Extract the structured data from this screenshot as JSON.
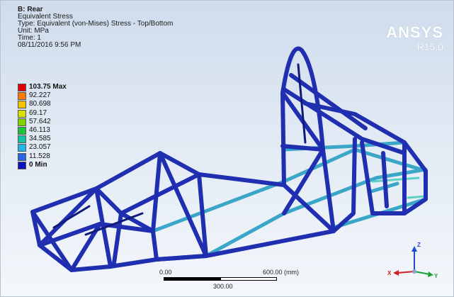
{
  "header": {
    "title": "B: Rear",
    "result": "Equivalent Stress",
    "type": "Type: Equivalent (von-Mises) Stress - Top/Bottom",
    "unit": "Unit: MPa",
    "time": "Time: 1",
    "date": "08/11/2016 9:56 PM"
  },
  "logo": {
    "name": "ANSYS",
    "version": "R15.0"
  },
  "legend": [
    {
      "label": "103.75 Max",
      "color": "#e00000"
    },
    {
      "label": "92.227",
      "color": "#ff7a00"
    },
    {
      "label": "80.698",
      "color": "#f5c400"
    },
    {
      "label": "69.17",
      "color": "#d8e000"
    },
    {
      "label": "57.642",
      "color": "#7fd400"
    },
    {
      "label": "46.113",
      "color": "#19c83a"
    },
    {
      "label": "34.585",
      "color": "#14c4a8"
    },
    {
      "label": "23.057",
      "color": "#21b4e6"
    },
    {
      "label": "11.528",
      "color": "#2d63e6"
    },
    {
      "label": "0 Min",
      "color": "#0a12b8"
    }
  ],
  "scale": {
    "start": "0.00",
    "mid": "300.00",
    "end": "600.00 (mm)"
  },
  "triad": {
    "x": "X",
    "y": "Y",
    "z": "Z"
  },
  "colors": {
    "frame_low": "#1f2fb0",
    "frame_mid": "#3aa6c8",
    "frame_dark": "#101a7a",
    "frame_high": "#5bd0c4"
  }
}
